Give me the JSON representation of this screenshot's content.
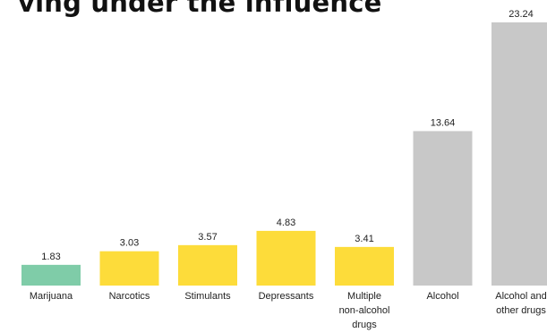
{
  "chart_data": {
    "type": "bar",
    "title": "ving under the influence",
    "categories": [
      [
        "Marijuana"
      ],
      [
        "Narcotics"
      ],
      [
        "Stimulants"
      ],
      [
        "Depressants"
      ],
      [
        "Multiple",
        "non-alcohol",
        "drugs"
      ],
      [
        "Alcohol"
      ],
      [
        "Alcohol and",
        "other drugs"
      ]
    ],
    "values": [
      1.83,
      3.03,
      3.57,
      4.83,
      3.41,
      13.64,
      23.24
    ],
    "value_labels": [
      "1.83",
      "3.03",
      "3.57",
      "4.83",
      "3.41",
      "13.64",
      "23.24"
    ],
    "bar_colors": [
      "#7fcca8",
      "#fddc3a",
      "#fddc3a",
      "#fddc3a",
      "#fddc3a",
      "#c8c8c8",
      "#c8c8c8"
    ],
    "ylim": [
      0,
      23.24
    ],
    "grid": false,
    "legend": "none"
  }
}
